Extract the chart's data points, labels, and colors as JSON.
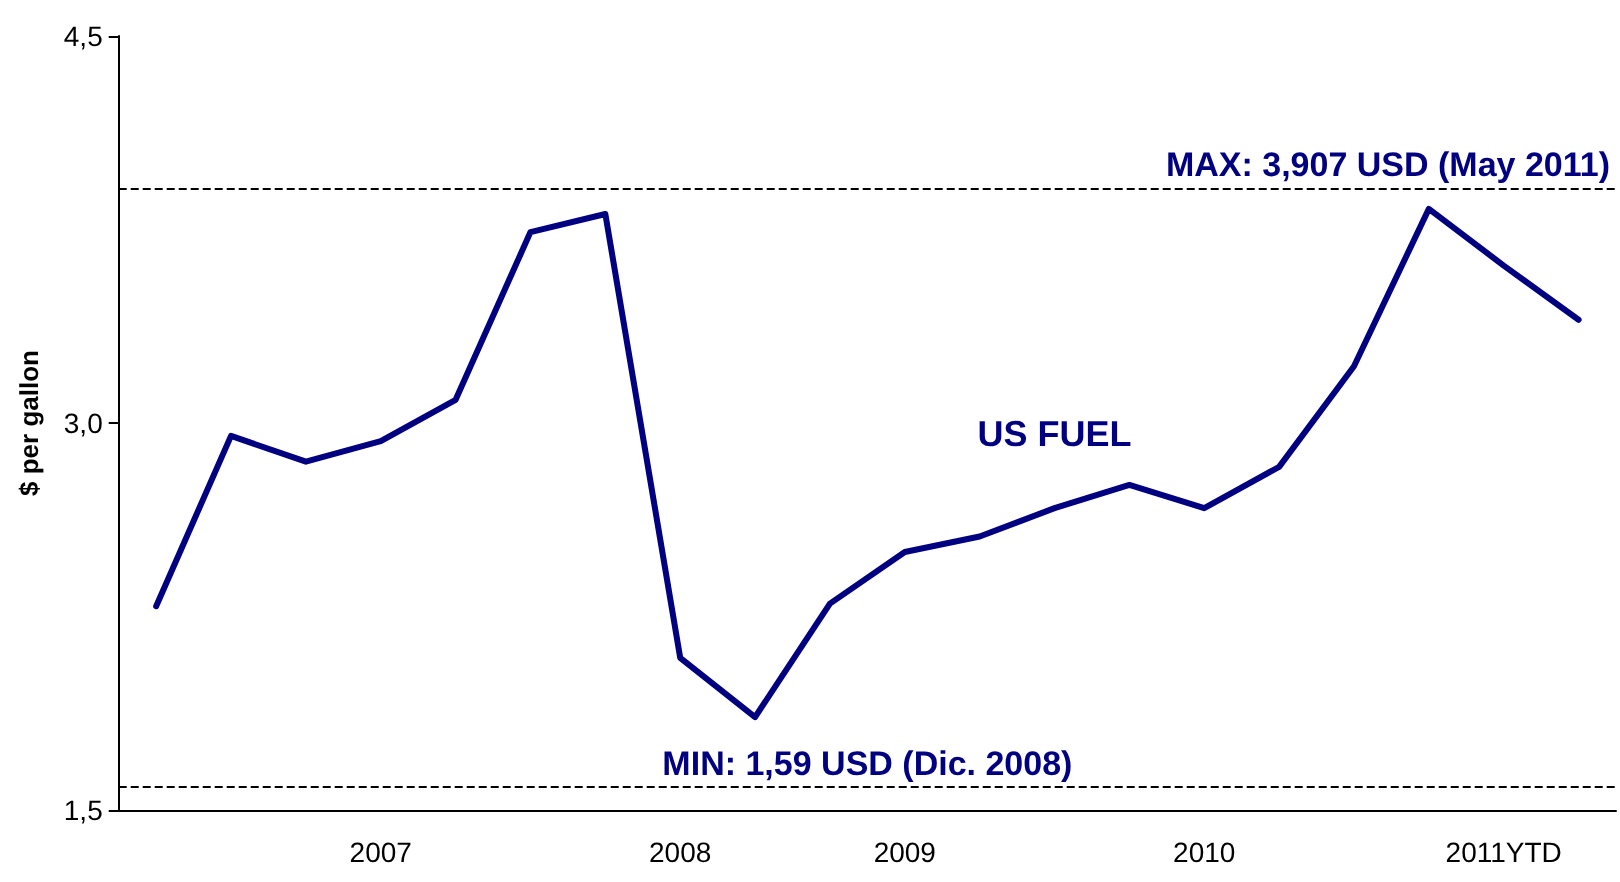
{
  "chart_data": {
    "type": "line",
    "ylabel": "$ per gallon",
    "categories": [
      null,
      null,
      null,
      "2007",
      null,
      null,
      null,
      "2008",
      null,
      null,
      "2009",
      null,
      null,
      null,
      "2010",
      null,
      null,
      null,
      "2011YTD",
      null
    ],
    "series": [
      {
        "name": "US FUEL",
        "color": "#000080",
        "values": [
          2.29,
          2.95,
          2.85,
          2.93,
          3.09,
          3.74,
          3.81,
          2.09,
          1.86,
          2.3,
          2.5,
          2.56,
          2.67,
          2.76,
          2.67,
          2.83,
          3.22,
          3.83,
          3.61,
          3.4
        ]
      }
    ],
    "ylim": [
      1.5,
      4.5
    ],
    "yticks": [
      {
        "value": 1.5,
        "label": "1,5"
      },
      {
        "value": 3.0,
        "label": "3,0"
      },
      {
        "value": 4.5,
        "label": "4,5"
      }
    ],
    "ref_lines": [
      {
        "axis": "y",
        "value": 3.907,
        "label": "MAX: 3,907 USD (May 2011)",
        "line_style": "dashed"
      },
      {
        "axis": "y",
        "value": 1.59,
        "label": "MIN: 1,59 USD (Dic. 2008)",
        "line_style": "dashed"
      }
    ],
    "grid": false,
    "legend": false,
    "marker": "none",
    "line_style": "solid"
  }
}
